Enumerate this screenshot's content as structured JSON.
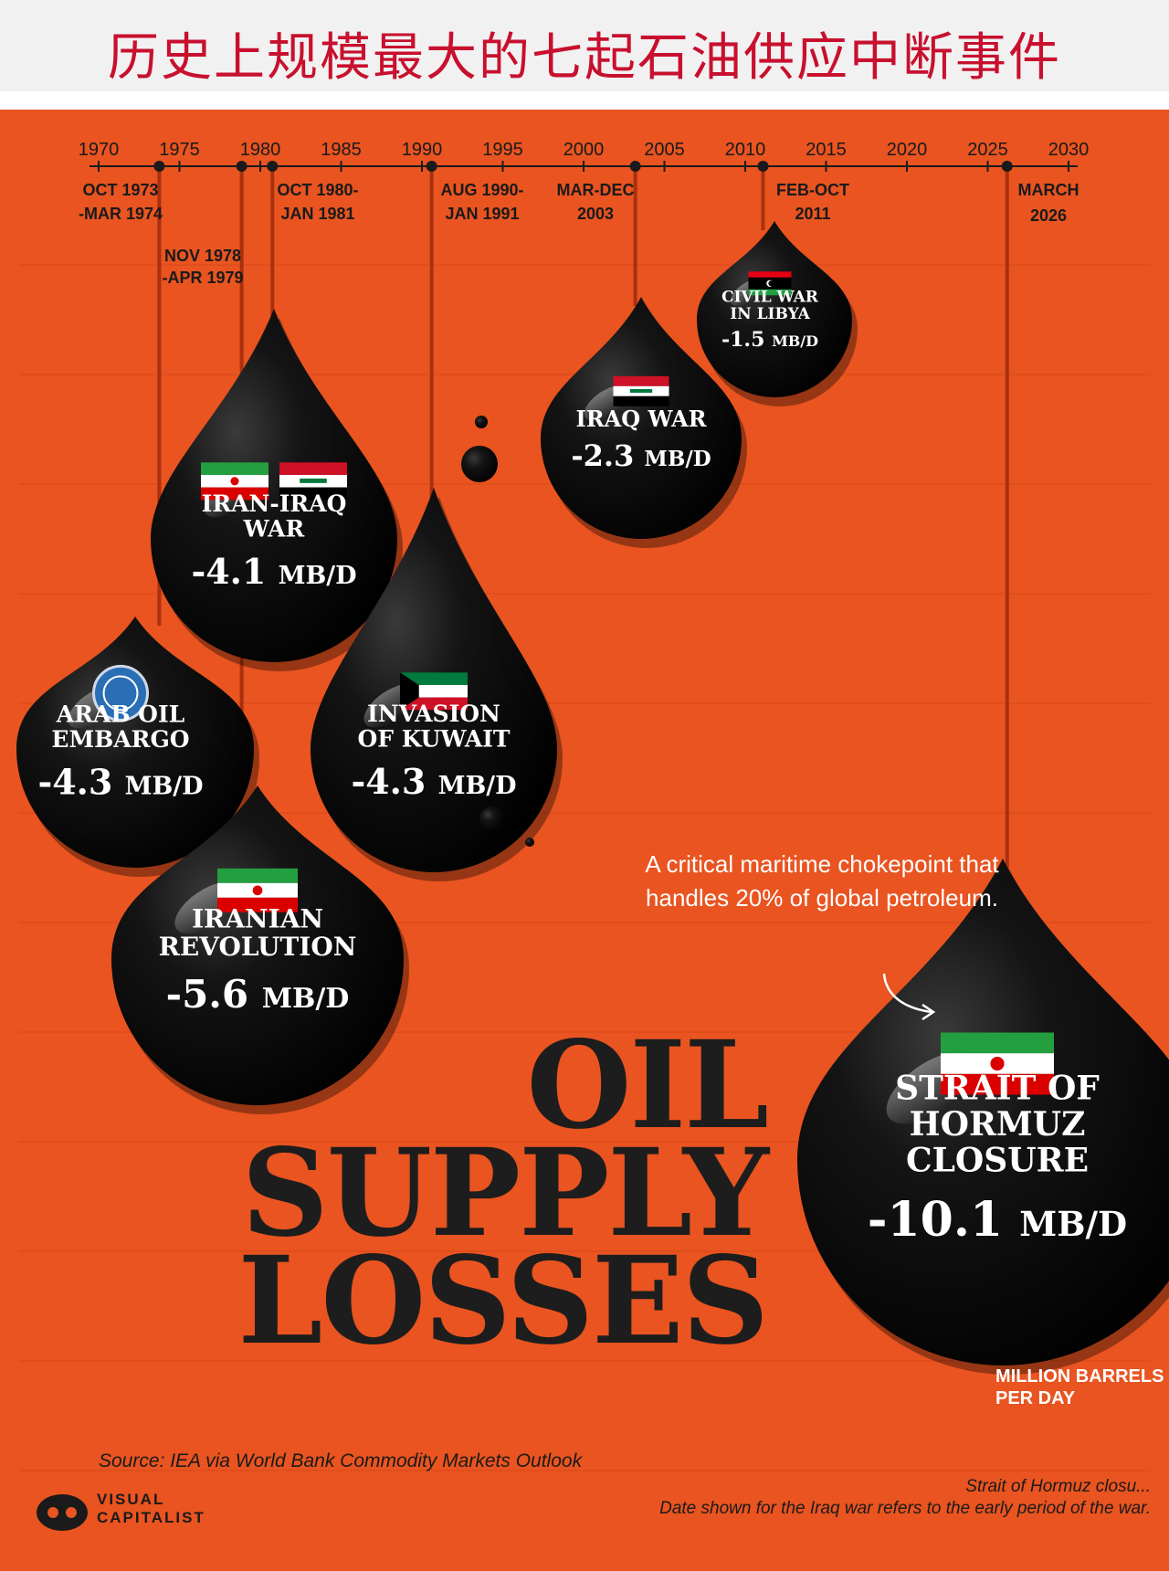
{
  "header": {
    "title": "历史上规模最大的七起石油供应中断事件"
  },
  "chart_data": {
    "type": "bubble-timeline",
    "title_lines": [
      "OIL",
      "SUPPLY",
      "LOSSES"
    ],
    "x_axis": {
      "ticks": [
        "1970",
        "1975",
        "1980",
        "1985",
        "1990",
        "1995",
        "2000",
        "2005",
        "2010",
        "2015",
        "2020",
        "2025",
        "2030"
      ],
      "range": [
        1970,
        2030
      ]
    },
    "unit": "MB/D",
    "unit_note": "MILLION BARRELS PER DAY",
    "events": [
      {
        "id": "arab-oil-embargo",
        "name_lines": [
          "ARAB OIL",
          "EMBARGO"
        ],
        "date_lines": [
          "OCT 1973",
          "-MAR 1974"
        ],
        "start": 1973.75,
        "value": -4.3,
        "value_label": "-4.3",
        "flags": [
          "opec"
        ]
      },
      {
        "id": "iranian-revolution",
        "name_lines": [
          "IRANIAN",
          "REVOLUTION"
        ],
        "date_lines": [
          "NOV 1978",
          "-APR 1979"
        ],
        "start": 1978.85,
        "value": -5.6,
        "value_label": "-5.6",
        "flags": [
          "iran"
        ]
      },
      {
        "id": "iran-iraq-war",
        "name_lines": [
          "IRAN-IRAQ",
          "WAR"
        ],
        "date_lines": [
          "OCT 1980-",
          "JAN 1981"
        ],
        "start": 1980.75,
        "value": -4.1,
        "value_label": "-4.1",
        "flags": [
          "iran",
          "iraq"
        ]
      },
      {
        "id": "invasion-of-kuwait",
        "name_lines": [
          "INVASION",
          "OF KUWAIT"
        ],
        "date_lines": [
          "AUG 1990-",
          "JAN 1991"
        ],
        "start": 1990.6,
        "value": -4.3,
        "value_label": "-4.3",
        "flags": [
          "kuwait"
        ]
      },
      {
        "id": "iraq-war",
        "name_lines": [
          "IRAQ WAR"
        ],
        "date_lines": [
          "MAR-DEC",
          "2003"
        ],
        "start": 2003.2,
        "value": -2.3,
        "value_label": "-2.3",
        "flags": [
          "iraq"
        ]
      },
      {
        "id": "civil-war-in-libya",
        "name_lines": [
          "CIVIL WAR",
          "IN LIBYA"
        ],
        "date_lines": [
          "FEB-OCT",
          "2011"
        ],
        "start": 2011.1,
        "value": -1.5,
        "value_label": "-1.5",
        "flags": [
          "libya"
        ]
      },
      {
        "id": "strait-of-hormuz-closure",
        "name_lines": [
          "STRAIT OF",
          "HORMUZ",
          "CLOSURE"
        ],
        "date_lines": [
          "MARCH",
          "2026"
        ],
        "start": 2026.2,
        "value": -10.1,
        "value_label": "-10.1",
        "flags": [
          "iran"
        ]
      }
    ],
    "annotation": "A critical maritime chokepoint that handles 20% of global petroleum.",
    "colors": {
      "background": "#e95420",
      "drop": "#0b0b0b",
      "text": "#ffffff",
      "line": "#a9300f"
    }
  },
  "footer": {
    "source": "Source: IEA via World Bank Commodity Markets Outlook",
    "footnote_lines": [
      "Strait of Hormuz closu...",
      "Date shown for the Iraq war refers to the early period of the war."
    ],
    "brand_lines": [
      "VISUAL",
      "CAPITALIST"
    ]
  }
}
